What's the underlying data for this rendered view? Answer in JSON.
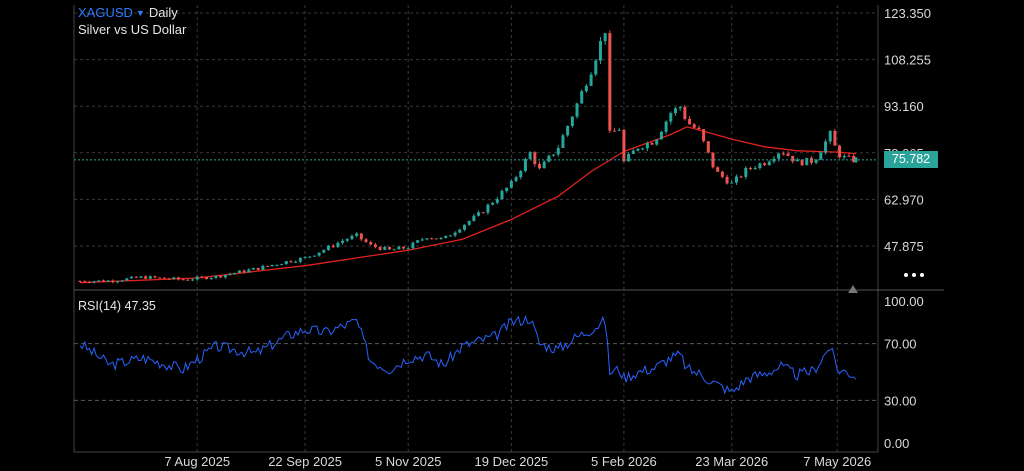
{
  "header": {
    "symbol": "XAGUSD",
    "period": "Daily",
    "subtitle": "Silver vs US Dollar"
  },
  "last_price": "75.782",
  "rsi": {
    "label": "RSI(14)",
    "value": "47.35"
  },
  "colors": {
    "up": "#26a69a",
    "down": "#ef5350",
    "ma": "#e0221d",
    "rsi": "#2962ff",
    "last_price_line": "#2aa39a",
    "grid": "#3a3a3a",
    "text": "#d9d9d9",
    "accent": "#2f7bff"
  },
  "chart_data": {
    "type": "candlestick",
    "price_axis": {
      "labels": [
        "123.350",
        "108.255",
        "93.160",
        "78.065",
        "62.970",
        "47.875"
      ],
      "values": [
        123.35,
        108.255,
        93.16,
        78.065,
        62.97,
        47.875
      ],
      "range": [
        37.5,
        125
      ]
    },
    "rsi_axis": {
      "labels": [
        "100.00",
        "70.00",
        "30.00",
        "0.00"
      ],
      "values": [
        100,
        70,
        30,
        0
      ],
      "levels": [
        70,
        30
      ],
      "range": [
        0,
        100
      ]
    },
    "date_axis": {
      "labels": [
        "7 Aug 2025",
        "22 Sep 2025",
        "5 Nov 2025",
        "19 Dec 2025",
        "5 Feb 2026",
        "23 Mar 2026",
        "7 May 2026"
      ],
      "dates": [
        "2025-08-07",
        "2025-09-22",
        "2025-11-05",
        "2025-12-19",
        "2026-02-05",
        "2026-03-23",
        "2026-05-07"
      ],
      "range": [
        "2025-06-18",
        "2026-05-15"
      ]
    },
    "close": [
      [
        "2025-06-18",
        36.5
      ],
      [
        "2025-07-01",
        36.6
      ],
      [
        "2025-07-15",
        37.8
      ],
      [
        "2025-08-01",
        37.0
      ],
      [
        "2025-08-15",
        38.0
      ],
      [
        "2025-09-01",
        40.5
      ],
      [
        "2025-09-15",
        43.0
      ],
      [
        "2025-09-22",
        44.0
      ],
      [
        "2025-10-01",
        47.0
      ],
      [
        "2025-10-09",
        50.0
      ],
      [
        "2025-10-14",
        51.2
      ],
      [
        "2025-10-20",
        48.0
      ],
      [
        "2025-10-28",
        46.5
      ],
      [
        "2025-11-05",
        47.5
      ],
      [
        "2025-11-13",
        51.0
      ],
      [
        "2025-11-20",
        50.0
      ],
      [
        "2025-11-28",
        54.5
      ],
      [
        "2025-12-05",
        58.0
      ],
      [
        "2025-12-12",
        63.0
      ],
      [
        "2025-12-19",
        68.0
      ],
      [
        "2025-12-27",
        78.0
      ],
      [
        "2025-12-31",
        72.5
      ],
      [
        "2026-01-08",
        80.0
      ],
      [
        "2026-01-15",
        92.0
      ],
      [
        "2026-01-22",
        105.0
      ],
      [
        "2026-01-28",
        118.0
      ],
      [
        "2026-01-30",
        84.0
      ],
      [
        "2026-02-03",
        86.0
      ],
      [
        "2026-02-05",
        75.0
      ],
      [
        "2026-02-11",
        80.0
      ],
      [
        "2026-02-18",
        82.0
      ],
      [
        "2026-02-25",
        91.0
      ],
      [
        "2026-03-01",
        93.0
      ],
      [
        "2026-03-04",
        88.0
      ],
      [
        "2026-03-09",
        85.0
      ],
      [
        "2026-03-16",
        72.0
      ],
      [
        "2026-03-23",
        68.0
      ],
      [
        "2026-03-30",
        73.0
      ],
      [
        "2026-04-06",
        75.0
      ],
      [
        "2026-04-13",
        79.0
      ],
      [
        "2026-04-20",
        75.0
      ],
      [
        "2026-04-27",
        75.5
      ],
      [
        "2026-05-04",
        84.0
      ],
      [
        "2026-05-07",
        78.0
      ],
      [
        "2026-05-11",
        76.0
      ],
      [
        "2026-05-15",
        75.78
      ]
    ],
    "moving_average": [
      [
        "2025-06-18",
        36.0
      ],
      [
        "2025-08-07",
        37.5
      ],
      [
        "2025-09-22",
        41.5
      ],
      [
        "2025-11-05",
        46.5
      ],
      [
        "2025-11-28",
        50.0
      ],
      [
        "2025-12-19",
        56.5
      ],
      [
        "2026-01-08",
        64.0
      ],
      [
        "2026-01-22",
        72.0
      ],
      [
        "2026-02-05",
        78.5
      ],
      [
        "2026-02-25",
        84.0
      ],
      [
        "2026-03-04",
        86.5
      ],
      [
        "2026-03-16",
        84.0
      ],
      [
        "2026-03-23",
        82.5
      ],
      [
        "2026-04-06",
        80.0
      ],
      [
        "2026-04-20",
        78.7
      ],
      [
        "2026-05-07",
        78.3
      ],
      [
        "2026-05-15",
        77.8
      ]
    ],
    "rsi_values": [
      [
        "2025-06-18",
        70
      ],
      [
        "2025-07-01",
        55
      ],
      [
        "2025-07-15",
        60
      ],
      [
        "2025-08-01",
        52
      ],
      [
        "2025-08-15",
        68
      ],
      [
        "2025-09-01",
        63
      ],
      [
        "2025-09-15",
        76
      ],
      [
        "2025-09-22",
        80
      ],
      [
        "2025-10-01",
        78
      ],
      [
        "2025-10-09",
        83
      ],
      [
        "2025-10-14",
        86
      ],
      [
        "2025-10-20",
        58
      ],
      [
        "2025-10-28",
        52
      ],
      [
        "2025-11-05",
        60
      ],
      [
        "2025-11-13",
        62
      ],
      [
        "2025-11-20",
        55
      ],
      [
        "2025-11-28",
        68
      ],
      [
        "2025-12-05",
        72
      ],
      [
        "2025-12-12",
        75
      ],
      [
        "2025-12-19",
        85
      ],
      [
        "2025-12-27",
        88
      ],
      [
        "2025-12-31",
        70
      ],
      [
        "2026-01-08",
        66
      ],
      [
        "2026-01-15",
        74
      ],
      [
        "2026-01-22",
        80
      ],
      [
        "2026-01-28",
        86
      ],
      [
        "2026-01-30",
        50
      ],
      [
        "2026-02-03",
        52
      ],
      [
        "2026-02-05",
        46
      ],
      [
        "2026-02-11",
        50
      ],
      [
        "2026-02-18",
        53
      ],
      [
        "2026-02-25",
        60
      ],
      [
        "2026-03-01",
        62
      ],
      [
        "2026-03-04",
        52
      ],
      [
        "2026-03-09",
        49
      ],
      [
        "2026-03-16",
        42
      ],
      [
        "2026-03-23",
        36
      ],
      [
        "2026-03-30",
        46
      ],
      [
        "2026-04-06",
        49
      ],
      [
        "2026-04-13",
        54
      ],
      [
        "2026-04-20",
        48
      ],
      [
        "2026-04-27",
        51
      ],
      [
        "2026-05-04",
        68
      ],
      [
        "2026-05-07",
        52
      ],
      [
        "2026-05-11",
        50
      ],
      [
        "2026-05-15",
        47.35
      ]
    ]
  }
}
